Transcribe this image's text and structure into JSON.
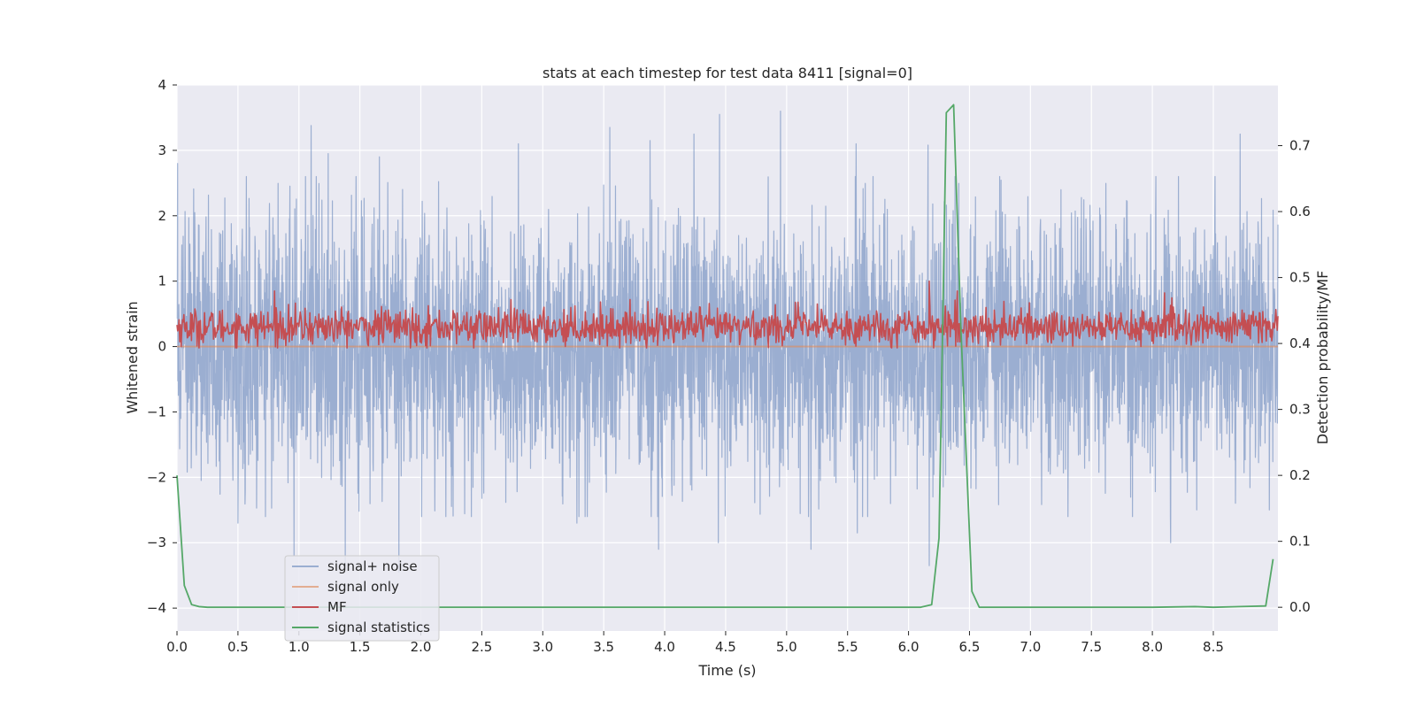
{
  "chart_data": {
    "type": "line",
    "title": "stats at each timestep for test data 8411 [signal=0]",
    "xlabel": "Time (s)",
    "ylabel": "Whitened strain",
    "y2label": "Detection probability/MF",
    "xlim": [
      0,
      9.03
    ],
    "ylim": [
      -4.35,
      4.0
    ],
    "y2lim": [
      -0.036,
      0.792
    ],
    "x_ticks": [
      0.0,
      0.5,
      1.0,
      1.5,
      2.0,
      2.5,
      3.0,
      3.5,
      4.0,
      4.5,
      5.0,
      5.5,
      6.0,
      6.5,
      7.0,
      7.5,
      8.0,
      8.5
    ],
    "x_tick_labels": [
      "0.0",
      "0.5",
      "1.0",
      "1.5",
      "2.0",
      "2.5",
      "3.0",
      "3.5",
      "4.0",
      "4.5",
      "5.0",
      "5.5",
      "6.0",
      "6.5",
      "7.0",
      "7.5",
      "8.0",
      "8.5"
    ],
    "y_ticks": [
      4,
      3,
      2,
      1,
      0,
      -1,
      -2,
      -3,
      -4
    ],
    "y_tick_labels": [
      "4",
      "3",
      "2",
      "1",
      "0",
      "−1",
      "−2",
      "−3",
      "−4"
    ],
    "y2_ticks": [
      0.7,
      0.6,
      0.5,
      0.4,
      0.3,
      0.2,
      0.1,
      0.0
    ],
    "y2_tick_labels": [
      "0.7",
      "0.6",
      "0.5",
      "0.4",
      "0.3",
      "0.2",
      "0.1",
      "0.0"
    ],
    "grid": true,
    "legend_position": "lower-left",
    "background": "#eaeaf2",
    "series": [
      {
        "name": "signal+ noise",
        "axis": "left",
        "color": "#4c72b0",
        "opacity": 0.5,
        "kind": "dense-noise",
        "x_range": [
          0,
          9.03
        ],
        "samples": 4096,
        "typical_range": [
          -1.7,
          1.7
        ],
        "peaks": [
          {
            "x": 0.005,
            "y": 2.8
          },
          {
            "x": 1.1,
            "y": 3.38
          },
          {
            "x": 1.24,
            "y": 2.95
          },
          {
            "x": 1.66,
            "y": 2.9
          },
          {
            "x": 2.8,
            "y": 3.1
          },
          {
            "x": 3.55,
            "y": 3.35
          },
          {
            "x": 3.88,
            "y": 3.15
          },
          {
            "x": 4.24,
            "y": 3.25
          },
          {
            "x": 4.45,
            "y": 3.55
          },
          {
            "x": 4.95,
            "y": 3.6
          },
          {
            "x": 5.57,
            "y": 3.1
          },
          {
            "x": 6.16,
            "y": 3.08
          },
          {
            "x": 8.72,
            "y": 3.25
          },
          {
            "x": 0.5,
            "y": -2.7
          },
          {
            "x": 0.96,
            "y": -3.2
          },
          {
            "x": 1.38,
            "y": -3.4
          },
          {
            "x": 1.82,
            "y": -3.45
          },
          {
            "x": 3.28,
            "y": -2.7
          },
          {
            "x": 3.95,
            "y": -3.1
          },
          {
            "x": 4.44,
            "y": -3.0
          },
          {
            "x": 5.2,
            "y": -3.1
          },
          {
            "x": 5.58,
            "y": -2.85
          },
          {
            "x": 6.17,
            "y": -3.35
          },
          {
            "x": 6.2,
            "y": -2.3
          },
          {
            "x": 8.15,
            "y": -3.0
          }
        ]
      },
      {
        "name": "signal only",
        "axis": "left",
        "color": "#dd8452",
        "opacity": 0.6,
        "x": [
          0,
          9.03
        ],
        "y": [
          0,
          0
        ]
      },
      {
        "name": "MF",
        "axis": "left",
        "color": "#c44e52",
        "kind": "dense-noise",
        "x_range": [
          0,
          9.03
        ],
        "samples": 1600,
        "typical_range": [
          0.0,
          0.62
        ],
        "peaks": [
          {
            "x": 0.8,
            "y": 0.85
          },
          {
            "x": 6.17,
            "y": 1.0
          },
          {
            "x": 6.4,
            "y": 0.85
          },
          {
            "x": 8.1,
            "y": 0.82
          }
        ]
      },
      {
        "name": "signal statistics",
        "axis": "right",
        "color": "#55a868",
        "x": [
          0.0,
          0.06,
          0.12,
          0.18,
          0.25,
          6.1,
          6.19,
          6.25,
          6.31,
          6.37,
          6.43,
          6.52,
          6.58,
          8.0,
          8.35,
          8.5,
          8.93,
          8.99
        ],
        "y": [
          0.2,
          0.033,
          0.004,
          0.001,
          0.0,
          0.0,
          0.004,
          0.105,
          0.75,
          0.762,
          0.42,
          0.024,
          0.0,
          0.0,
          0.001,
          0.0,
          0.002,
          0.073
        ]
      }
    ]
  }
}
